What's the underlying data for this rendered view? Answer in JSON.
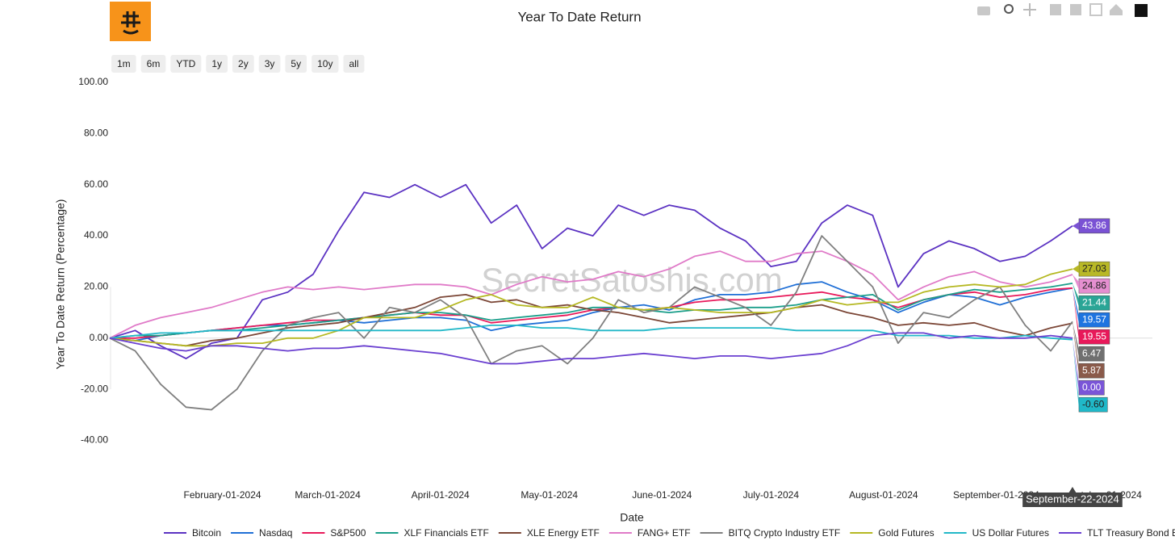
{
  "chart_data": {
    "type": "line",
    "title": "Year To Date Return",
    "x_label": "Date",
    "y_label": "Year To Date Return (Percentage)",
    "watermark": "SecretSatoshis.com",
    "range_buttons": [
      "1m",
      "6m",
      "YTD",
      "1y",
      "2y",
      "3y",
      "5y",
      "10y",
      "all"
    ],
    "hover_label": "September-22-2024",
    "x": [
      "2024-01-01",
      "2024-01-08",
      "2024-01-15",
      "2024-01-22",
      "2024-01-29",
      "2024-02-05",
      "2024-02-12",
      "2024-02-19",
      "2024-02-26",
      "2024-03-04",
      "2024-03-11",
      "2024-03-18",
      "2024-03-25",
      "2024-04-01",
      "2024-04-08",
      "2024-04-15",
      "2024-04-22",
      "2024-04-29",
      "2024-05-06",
      "2024-05-13",
      "2024-05-20",
      "2024-05-27",
      "2024-06-03",
      "2024-06-10",
      "2024-06-17",
      "2024-06-24",
      "2024-07-01",
      "2024-07-08",
      "2024-07-15",
      "2024-07-22",
      "2024-07-29",
      "2024-08-05",
      "2024-08-12",
      "2024-08-19",
      "2024-08-26",
      "2024-09-02",
      "2024-09-09",
      "2024-09-16",
      "2024-09-22"
    ],
    "xlim": [
      "2024-01-01",
      "2024-10-14"
    ],
    "xticks": [
      {
        "value": "2024-02-01",
        "label": "February-01-2024"
      },
      {
        "value": "2024-03-01",
        "label": "March-01-2024"
      },
      {
        "value": "2024-04-01",
        "label": "April-01-2024"
      },
      {
        "value": "2024-05-01",
        "label": "May-01-2024"
      },
      {
        "value": "2024-06-01",
        "label": "June-01-2024"
      },
      {
        "value": "2024-07-01",
        "label": "July-01-2024"
      },
      {
        "value": "2024-08-01",
        "label": "August-01-2024"
      },
      {
        "value": "2024-09-01",
        "label": "September-01-2024"
      },
      {
        "value": "2024-10-01",
        "label": "October-01-2024"
      }
    ],
    "ylim": [
      -55,
      100
    ],
    "yticks": [
      {
        "value": -40,
        "label": "-40.00"
      },
      {
        "value": -20,
        "label": "-20.00"
      },
      {
        "value": 0,
        "label": "0.00"
      },
      {
        "value": 20,
        "label": "20.00"
      },
      {
        "value": 40,
        "label": "40.00"
      },
      {
        "value": 60,
        "label": "60.00"
      },
      {
        "value": 80,
        "label": "80.00"
      },
      {
        "value": 100,
        "label": "100.00"
      }
    ],
    "zero_line": true,
    "series": [
      {
        "name": "Bitcoin",
        "color": "#5b32c2",
        "label_color": "#7a52d4",
        "label_text_color": "#ffffff",
        "end_label": "43.86",
        "values": [
          0,
          3,
          -3,
          -8,
          -2,
          0,
          15,
          18,
          25,
          42,
          57,
          55,
          60,
          55,
          60,
          45,
          52,
          35,
          43,
          40,
          52,
          48,
          52,
          50,
          43,
          38,
          28,
          30,
          45,
          52,
          48,
          20,
          33,
          38,
          35,
          30,
          32,
          38,
          43.86
        ]
      },
      {
        "name": "Nasdaq",
        "color": "#1f6fd6",
        "label_color": "#1f74e0",
        "label_text_color": "#ffffff",
        "end_label": "19.57",
        "values": [
          0,
          -1,
          1,
          2,
          3,
          4,
          5,
          5,
          6,
          7,
          6,
          7,
          8,
          8,
          7,
          3,
          5,
          6,
          7,
          10,
          12,
          13,
          11,
          15,
          17,
          17,
          18,
          21,
          22,
          18,
          15,
          10,
          14,
          17,
          16,
          13,
          16,
          18,
          19.57
        ]
      },
      {
        "name": "S&P500",
        "color": "#e8195a",
        "label_color": "#e8195a",
        "label_text_color": "#ffffff",
        "end_label": "19.55",
        "values": [
          0,
          0,
          1,
          2,
          3,
          4,
          5,
          6,
          7,
          7,
          8,
          9,
          10,
          9,
          9,
          6,
          7,
          8,
          9,
          11,
          12,
          11,
          12,
          14,
          15,
          15,
          16,
          17,
          18,
          16,
          15,
          12,
          15,
          17,
          18,
          16,
          17,
          19,
          19.55
        ]
      },
      {
        "name": "XLF Financials ETF",
        "color": "#1a9e8a",
        "label_color": "#2aa596",
        "label_text_color": "#ffffff",
        "end_label": "21.44",
        "values": [
          0,
          1,
          1,
          2,
          3,
          3,
          4,
          5,
          6,
          7,
          8,
          9,
          10,
          10,
          9,
          7,
          8,
          9,
          10,
          12,
          12,
          11,
          10,
          11,
          11,
          12,
          12,
          13,
          15,
          16,
          17,
          11,
          15,
          17,
          19,
          18,
          19,
          20,
          21.44
        ]
      },
      {
        "name": "XLE Energy ETF",
        "color": "#7b4636",
        "label_color": "#8a5a4a",
        "label_text_color": "#ffffff",
        "end_label": "5.87",
        "values": [
          0,
          -1,
          -2,
          -3,
          -1,
          0,
          2,
          4,
          5,
          6,
          8,
          10,
          12,
          16,
          17,
          14,
          15,
          12,
          13,
          11,
          10,
          8,
          6,
          7,
          8,
          9,
          10,
          12,
          13,
          10,
          8,
          5,
          6,
          5,
          6,
          3,
          1,
          4,
          5.87
        ]
      },
      {
        "name": "FANG+ ETF",
        "color": "#e07ac8",
        "label_color": "#e58fd0",
        "label_text_color": "#222222",
        "end_label": "24.86",
        "values": [
          0,
          5,
          8,
          10,
          12,
          15,
          18,
          20,
          19,
          20,
          19,
          20,
          21,
          21,
          20,
          17,
          21,
          24,
          22,
          23,
          26,
          24,
          27,
          32,
          34,
          30,
          30,
          33,
          34,
          30,
          25,
          15,
          20,
          24,
          26,
          22,
          20,
          22,
          24.86
        ]
      },
      {
        "name": "BITQ Crypto Industry ETF",
        "color": "#7f7f7f",
        "label_color": "#707070",
        "label_text_color": "#ffffff",
        "end_label": "6.47",
        "values": [
          0,
          -5,
          -18,
          -27,
          -28,
          -20,
          -5,
          5,
          8,
          10,
          0,
          12,
          10,
          15,
          8,
          -10,
          -5,
          -3,
          -10,
          0,
          15,
          10,
          12,
          20,
          16,
          12,
          5,
          18,
          40,
          30,
          20,
          -2,
          10,
          8,
          15,
          20,
          5,
          -5,
          6.47
        ]
      },
      {
        "name": "Gold Futures",
        "color": "#b5b822",
        "label_color": "#b8b826",
        "label_text_color": "#222222",
        "end_label": "27.03",
        "values": [
          0,
          -1,
          -2,
          -3,
          -3,
          -2,
          -2,
          0,
          0,
          3,
          8,
          8,
          8,
          11,
          15,
          17,
          13,
          12,
          12,
          16,
          12,
          11,
          12,
          11,
          10,
          10,
          10,
          12,
          15,
          13,
          14,
          14,
          18,
          20,
          21,
          20,
          21,
          25,
          27.03
        ]
      },
      {
        "name": "US Dollar Futures",
        "color": "#22b8c8",
        "label_color": "#20b8c8",
        "label_text_color": "#222222",
        "end_label": "-0.60",
        "values": [
          0,
          1,
          2,
          2,
          3,
          3,
          3,
          3,
          3,
          3,
          3,
          3,
          3,
          3,
          4,
          5,
          5,
          4,
          4,
          3,
          3,
          3,
          4,
          4,
          4,
          4,
          4,
          3,
          3,
          3,
          3,
          1,
          1,
          1,
          0,
          0,
          1,
          0,
          -0.6
        ]
      },
      {
        "name": "TLT Treasury Bond ETF",
        "color": "#6a3fd0",
        "label_color": "#7a55d8",
        "label_text_color": "#ffffff",
        "end_label": "0.00",
        "values": [
          0,
          -2,
          -4,
          -5,
          -3,
          -3,
          -4,
          -5,
          -4,
          -4,
          -3,
          -4,
          -5,
          -6,
          -8,
          -10,
          -10,
          -9,
          -8,
          -8,
          -7,
          -6,
          -7,
          -8,
          -7,
          -7,
          -8,
          -7,
          -6,
          -3,
          1,
          2,
          2,
          0,
          1,
          0,
          0,
          1,
          0
        ]
      }
    ]
  }
}
